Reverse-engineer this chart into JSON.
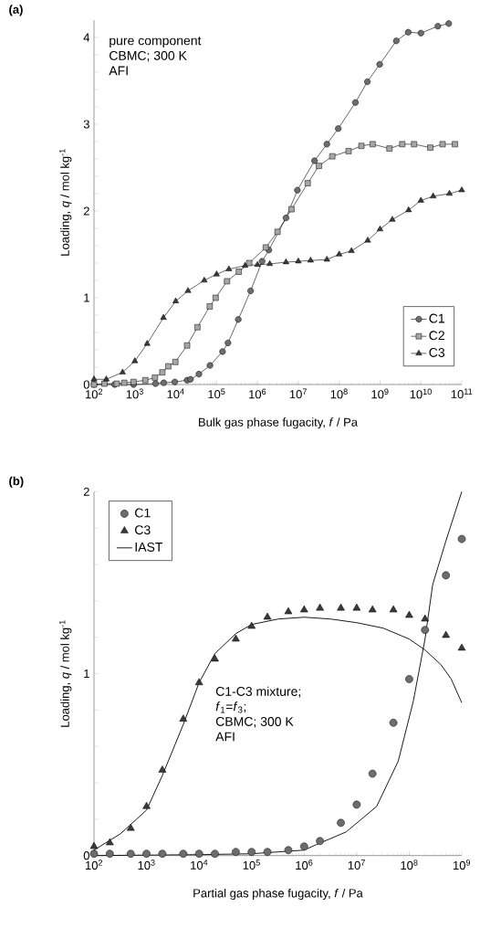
{
  "chart_data": [
    {
      "type": "line",
      "title": "(a)",
      "xlabel": "Bulk gas phase fugacity, *f* / Pa",
      "ylabel": "Loading, *q* / mol kg$^{-1}$",
      "log": "x",
      "legend": "bottom right",
      "grid": false,
      "annotations": [
        "pure component",
        "CBMC; 300 K",
        "AFI"
      ],
      "xlim": [
        100,
        100000000000
      ],
      "ylim": [
        0,
        4.2
      ],
      "xticks": [
        {
          "value": 100,
          "label": "10$^{2}$"
        },
        {
          "value": 1000,
          "label": "10$^{3}$"
        },
        {
          "value": 10000,
          "label": "10$^{4}$"
        },
        {
          "value": 100000,
          "label": "10$^{5}$"
        },
        {
          "value": 1000000,
          "label": "10$^{6}$"
        },
        {
          "value": 10000000,
          "label": "10$^{7}$"
        },
        {
          "value": 100000000,
          "label": "10$^{8}$"
        },
        {
          "value": 1000000000,
          "label": "10$^{9}$"
        },
        {
          "value": 10000000000,
          "label": "10$^{10}$"
        },
        {
          "value": 100000000000,
          "label": "10$^{11}$"
        }
      ],
      "yticks": [
        0,
        {
          "value": 0.2,
          "label": null
        },
        {
          "value": 0.4,
          "label": null
        },
        {
          "value": 0.6,
          "label": null
        },
        {
          "value": 0.8,
          "label": null
        },
        1,
        {
          "value": 1.2,
          "label": null
        },
        {
          "value": 1.4,
          "label": null
        },
        {
          "value": 1.6,
          "label": null
        },
        {
          "value": 1.8,
          "label": null
        },
        2,
        {
          "value": 2.2,
          "label": null
        },
        {
          "value": 2.4,
          "label": null
        },
        {
          "value": 2.6,
          "label": null
        },
        {
          "value": 2.8,
          "label": null
        },
        3,
        {
          "value": 3.2,
          "label": null
        },
        {
          "value": 3.4,
          "label": null
        },
        {
          "value": 3.6,
          "label": null
        },
        {
          "value": 3.8,
          "label": null
        },
        4
      ],
      "series": [
        {
          "name": "C1",
          "color": "#6d6d6d",
          "marker": "circle",
          "x": [
            100,
            320,
            930,
            3200,
            5100,
            9500,
            19000,
            23000,
            37000,
            69000,
            140000,
            190000,
            340000,
            680000,
            1300000,
            1900000,
            5000000,
            9500000,
            25000000,
            50000000,
            95000000,
            250000000,
            490000000,
            980000000,
            2500000000,
            4900000000,
            10000000000,
            26000000000,
            48000000000
          ],
          "values": [
            0,
            0,
            0,
            0.01,
            0.02,
            0.03,
            0.05,
            0.06,
            0.12,
            0.22,
            0.38,
            0.48,
            0.75,
            1.08,
            1.42,
            1.55,
            1.92,
            2.24,
            2.58,
            2.77,
            2.95,
            3.25,
            3.49,
            3.69,
            3.96,
            4.06,
            4.05,
            4.13,
            4.16
          ]
        },
        {
          "name": "C2",
          "color": "#a6a6a6",
          "marker": "square",
          "x": [
            100,
            180,
            360,
            550,
            930,
            1800,
            3100,
            4700,
            6600,
            9800,
            19000,
            34000,
            68000,
            95000,
            180000,
            350000,
            630000,
            1600000,
            3100000,
            6800000,
            17000000,
            32000000,
            68000000,
            170000000,
            350000000,
            660000000,
            1700000000,
            3500000000,
            6800000000,
            17000000000,
            34000000000,
            68000000000
          ],
          "values": [
            0,
            0.01,
            0.01,
            0.02,
            0.03,
            0.05,
            0.08,
            0.14,
            0.21,
            0.26,
            0.45,
            0.66,
            0.9,
            1.0,
            1.19,
            1.3,
            1.4,
            1.58,
            1.76,
            2.02,
            2.32,
            2.52,
            2.63,
            2.69,
            2.75,
            2.77,
            2.72,
            2.77,
            2.77,
            2.73,
            2.77,
            2.77
          ]
        },
        {
          "name": "C3",
          "color": "#3a3a3a",
          "marker": "triangle",
          "x": [
            100,
            200,
            500,
            1000,
            2000,
            5000,
            10000,
            20000,
            50000,
            100000,
            200000,
            500000,
            1000000,
            2000000,
            5000000,
            10000000,
            20000000,
            50000000,
            100000000,
            200000000,
            500000000,
            1000000000,
            2000000000,
            5000000000,
            10000000000,
            20000000000,
            50000000000,
            100000000000
          ],
          "values": [
            0.06,
            0.06,
            0.14,
            0.27,
            0.47,
            0.77,
            0.96,
            1.08,
            1.2,
            1.27,
            1.33,
            1.37,
            1.38,
            1.39,
            1.41,
            1.42,
            1.43,
            1.44,
            1.5,
            1.54,
            1.66,
            1.79,
            1.9,
            2.01,
            2.12,
            2.17,
            2.2,
            2.24
          ]
        }
      ]
    },
    {
      "type": "scatter",
      "title": "(b)",
      "xlabel": "Partial gas phase fugacity, *f* / Pa",
      "ylabel": "Loading, *q* / mol kg$^{-1}$",
      "log": "x",
      "legend": "top left",
      "grid": false,
      "annotations": [
        "C1-C3 mixture;",
        "*f*$_{1}$=*f*$_{3}$;",
        "CBMC; 300 K",
        "AFI"
      ],
      "xlim": [
        100,
        1000000000
      ],
      "ylim": [
        0,
        2
      ],
      "xticks": [
        {
          "value": 100,
          "label": "10$^{2}$"
        },
        {
          "value": 1000,
          "label": "10$^{3}$"
        },
        {
          "value": 10000,
          "label": "10$^{4}$"
        },
        {
          "value": 100000,
          "label": "10$^{5}$"
        },
        {
          "value": 1000000,
          "label": "10$^{6}$"
        },
        {
          "value": 10000000,
          "label": "10$^{7}$"
        },
        {
          "value": 100000000,
          "label": "10$^{8}$"
        },
        {
          "value": 1000000000,
          "label": "10$^{9}$"
        }
      ],
      "yticks": [
        0,
        {
          "value": 0.2,
          "label": null
        },
        {
          "value": 0.4,
          "label": null
        },
        {
          "value": 0.6,
          "label": null
        },
        {
          "value": 0.8,
          "label": null
        },
        1,
        {
          "value": 1.2,
          "label": null
        },
        {
          "value": 1.4,
          "label": null
        },
        {
          "value": 1.6,
          "label": null
        },
        {
          "value": 1.8,
          "label": null
        },
        2
      ],
      "series": [
        {
          "name": "C1",
          "color": "#6d6d6d",
          "marker": "circle",
          "x": [
            100,
            200,
            500,
            1000,
            2000,
            5000,
            10000,
            20000,
            50000,
            100000,
            200000,
            500000,
            1000000,
            2000000,
            5000000,
            10000000,
            20000000,
            50000000,
            100000000,
            200000000,
            500000000,
            1000000000
          ],
          "values": [
            0.01,
            0.01,
            0.01,
            0.01,
            0.01,
            0.01,
            0.01,
            0.01,
            0.02,
            0.02,
            0.02,
            0.03,
            0.05,
            0.08,
            0.18,
            0.28,
            0.45,
            0.73,
            0.97,
            1.24,
            1.54,
            1.74
          ]
        },
        {
          "name": "C3",
          "color": "#3a3a3a",
          "marker": "triangle",
          "x": [
            100,
            200,
            500,
            1000,
            2000,
            5000,
            10000,
            20000,
            50000,
            100000,
            200000,
            500000,
            1000000,
            2000000,
            5000000,
            10000000,
            20000000,
            50000000,
            100000000,
            200000000,
            500000000,
            1000000000
          ],
          "values": [
            0.05,
            0.07,
            0.15,
            0.27,
            0.47,
            0.75,
            0.95,
            1.08,
            1.19,
            1.26,
            1.31,
            1.34,
            1.35,
            1.36,
            1.36,
            1.36,
            1.35,
            1.35,
            1.32,
            1.3,
            1.21,
            1.14
          ]
        },
        {
          "name": "IAST",
          "type": "line",
          "color": "#000000",
          "marker": "none",
          "x": [
            100,
            320,
            1000,
            2000,
            5000,
            10000,
            20000,
            50000,
            100000,
            320000,
            1000000,
            3200000,
            10000000,
            32000000,
            100000000,
            200000000,
            400000000,
            630000000,
            1000000000
          ],
          "values": [
            0.03,
            0.12,
            0.25,
            0.44,
            0.72,
            0.95,
            1.11,
            1.22,
            1.27,
            1.3,
            1.31,
            1.3,
            1.28,
            1.25,
            1.19,
            1.13,
            1.05,
            0.97,
            0.84
          ]
        },
        {
          "type": "line",
          "color": "#000000",
          "marker": "none",
          "x": [
            100,
            10000,
            100000,
            1000000,
            1700000,
            6300000,
            24000000,
            62000000,
            120000000,
            200000000,
            280000000,
            500000000,
            1000000000
          ],
          "values": [
            0,
            0.005,
            0.01,
            0.03,
            0.06,
            0.13,
            0.27,
            0.52,
            0.85,
            1.19,
            1.49,
            1.73,
            2.0
          ]
        }
      ]
    }
  ]
}
